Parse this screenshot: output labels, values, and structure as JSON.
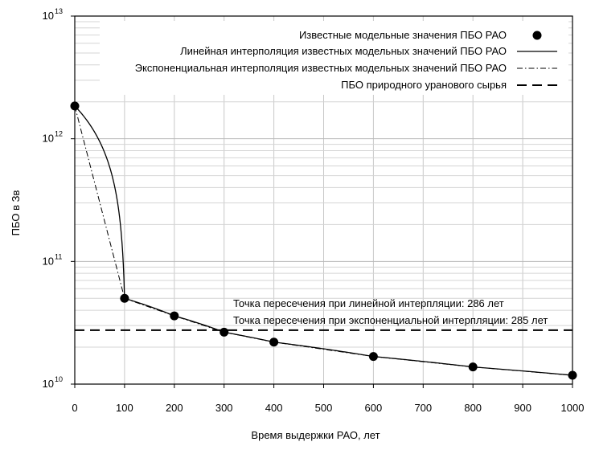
{
  "chart_data": {
    "type": "line",
    "xlabel": "Время выдержки РАО, лет",
    "ylabel": "ПБО в Зв",
    "xlim": [
      0,
      1000
    ],
    "ylim": [
      10000000000.0,
      10000000000000.0
    ],
    "y_scale": "log",
    "x_ticks": [
      0,
      100,
      200,
      300,
      400,
      500,
      600,
      700,
      800,
      900,
      1000
    ],
    "x_tick_labels": [
      "0",
      "100",
      "200",
      "300",
      "400",
      "500",
      "600",
      "700",
      "800",
      "900",
      "1000"
    ],
    "y_ticks": [
      {
        "value": 10000000000.0,
        "base": "10",
        "exp": "10"
      },
      {
        "value": 100000000000.0,
        "base": "10",
        "exp": "11"
      },
      {
        "value": 1000000000000.0,
        "base": "10",
        "exp": "12"
      },
      {
        "value": 10000000000000.0,
        "base": "10",
        "exp": "13"
      }
    ],
    "grid": true,
    "legend_position": "top-right",
    "series": [
      {
        "name": "Известные модельные значения ПБО РАО",
        "style": "markers",
        "x": [
          0,
          100,
          200,
          300,
          400,
          600,
          800,
          1000
        ],
        "y": [
          1850000000000.0,
          50000000000.0,
          36000000000.0,
          26500000000.0,
          22000000000.0,
          16800000000.0,
          13800000000.0,
          11800000000.0
        ]
      },
      {
        "name": "Линейная интерполяция известных модельных значений ПБО РАО",
        "style": "solid",
        "interpolation": "linear",
        "x": [
          0,
          100,
          200,
          300,
          400,
          600,
          800,
          1000
        ],
        "y": [
          1850000000000.0,
          50000000000.0,
          36000000000.0,
          26500000000.0,
          22000000000.0,
          16800000000.0,
          13800000000.0,
          11800000000.0
        ]
      },
      {
        "name": "Экспоненциальная интерполяция известных модельных значений ПБО РАО",
        "style": "dashdot",
        "interpolation": "exponential",
        "x": [
          0,
          100,
          200,
          300,
          400,
          600,
          800,
          1000
        ],
        "y": [
          1850000000000.0,
          50000000000.0,
          36000000000.0,
          26500000000.0,
          22000000000.0,
          16800000000.0,
          13800000000.0,
          11800000000.0
        ]
      },
      {
        "name": "ПБО природного уранового сырья",
        "style": "dashed",
        "x": [
          0,
          1000
        ],
        "y": [
          27500000000.0,
          27500000000.0
        ]
      }
    ],
    "annotations": [
      "Точка пересечения при линейной интерпляции: 286 лет",
      "Точка пересечения при экспоненциальной интерпляции: 285 лет"
    ]
  }
}
